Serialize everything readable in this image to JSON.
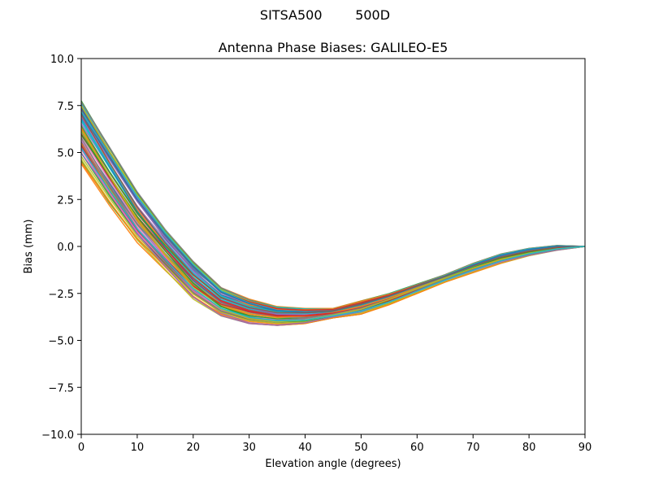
{
  "chart_data": {
    "type": "line",
    "suptitle": "SITSA500        500D",
    "title": "Antenna Phase Biases: GALILEO-E5",
    "xlabel": "Elevation angle (degrees)",
    "ylabel": "Bias (mm)",
    "xlim": [
      0,
      90
    ],
    "ylim": [
      -10,
      10
    ],
    "xticks": [
      0,
      10,
      20,
      30,
      40,
      50,
      60,
      70,
      80,
      90
    ],
    "yticks": [
      -10.0,
      -7.5,
      -5.0,
      -2.5,
      0.0,
      2.5,
      5.0,
      7.5,
      10.0
    ],
    "ytick_labels": [
      "−10.0",
      "−7.5",
      "−5.0",
      "−2.5",
      "0.0",
      "2.5",
      "5.0",
      "7.5",
      "10.0"
    ],
    "xtick_labels": [
      "0",
      "10",
      "20",
      "30",
      "40",
      "50",
      "60",
      "70",
      "80",
      "90"
    ],
    "grid": false,
    "x": [
      0,
      5,
      10,
      15,
      20,
      25,
      30,
      35,
      40,
      45,
      50,
      55,
      60,
      65,
      70,
      75,
      80,
      85,
      90
    ],
    "envelope": {
      "upper": [
        7.8,
        5.3,
        2.9,
        0.9,
        -0.8,
        -2.2,
        -2.8,
        -3.2,
        -3.3,
        -3.3,
        -2.9,
        -2.5,
        -2.0,
        -1.5,
        -0.9,
        -0.4,
        -0.1,
        0.05,
        0.0
      ],
      "lower": [
        4.4,
        2.2,
        0.2,
        -1.3,
        -2.8,
        -3.7,
        -4.1,
        -4.2,
        -4.1,
        -3.8,
        -3.6,
        -3.1,
        -2.5,
        -1.9,
        -1.4,
        -0.9,
        -0.5,
        -0.2,
        0.0
      ]
    },
    "series_count": 60,
    "colors": [
      "#1f77b4",
      "#ff7f0e",
      "#2ca02c",
      "#d62728",
      "#9467bd",
      "#8c564b",
      "#e377c2",
      "#7f7f7f",
      "#bcbd22",
      "#17becf"
    ]
  }
}
